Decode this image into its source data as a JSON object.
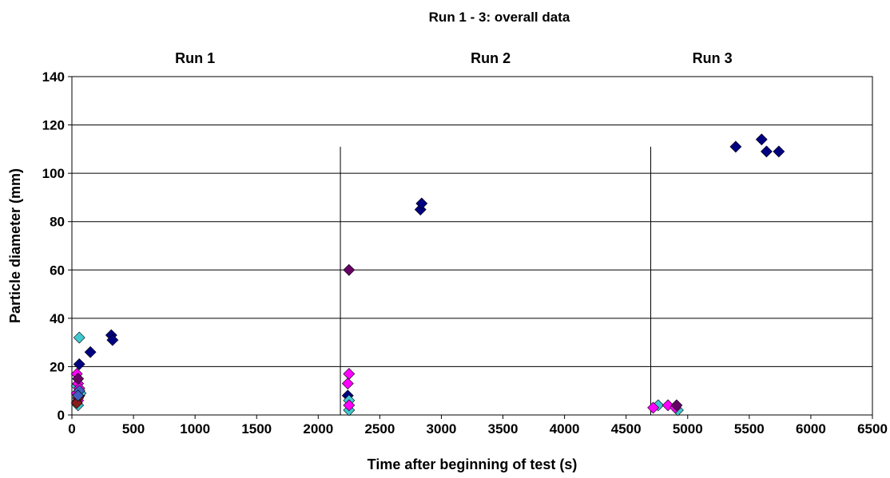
{
  "chart_data": {
    "type": "scatter",
    "title": "Run 1 - 3: overall data",
    "xlabel": "Time after beginning of test (s)",
    "ylabel": "Particle diameter (mm)",
    "xlim": [
      0,
      6500
    ],
    "ylim": [
      0,
      140
    ],
    "xticks": [
      0,
      500,
      1000,
      1500,
      2000,
      2500,
      3000,
      3500,
      4000,
      4500,
      5000,
      5500,
      6000,
      6500
    ],
    "yticks": [
      0,
      20,
      40,
      60,
      80,
      100,
      120,
      140
    ],
    "grid": "horizontal",
    "legend": "none",
    "run_labels": [
      {
        "text": "Run 1",
        "x": 1000
      },
      {
        "text": "Run 2",
        "x": 3400
      },
      {
        "text": "Run 3",
        "x": 5200
      }
    ],
    "run_dividers": [
      {
        "x": 2180,
        "y_top": 111
      },
      {
        "x": 4700,
        "y_top": 111
      }
    ],
    "series": [
      {
        "color": "#000080",
        "points": [
          [
            60,
            21
          ],
          [
            60,
            10
          ],
          [
            50,
            9
          ],
          [
            60,
            8
          ],
          [
            150,
            26
          ],
          [
            320,
            33
          ],
          [
            330,
            31
          ],
          [
            2240,
            8
          ],
          [
            2830,
            85
          ],
          [
            2840,
            87.5
          ],
          [
            5390,
            111
          ],
          [
            5600,
            114
          ],
          [
            5640,
            109
          ],
          [
            5740,
            109
          ]
        ]
      },
      {
        "color": "#40C8D0",
        "points": [
          [
            60,
            32
          ],
          [
            50,
            4
          ],
          [
            40,
            12
          ],
          [
            70,
            9
          ],
          [
            2250,
            6
          ],
          [
            2250,
            2
          ],
          [
            4760,
            4
          ],
          [
            4920,
            2
          ]
        ]
      },
      {
        "color": "#FF00FF",
        "points": [
          [
            40,
            17
          ],
          [
            50,
            13
          ],
          [
            60,
            11
          ],
          [
            40,
            9
          ],
          [
            50,
            6
          ],
          [
            2250,
            17
          ],
          [
            2240,
            13
          ],
          [
            2250,
            4
          ],
          [
            4720,
            3
          ],
          [
            4840,
            4
          ],
          [
            4900,
            3
          ]
        ]
      },
      {
        "color": "#660066",
        "points": [
          [
            50,
            15
          ],
          [
            2250,
            60
          ],
          [
            4910,
            4
          ]
        ]
      },
      {
        "color": "#8B1A1A",
        "points": [
          [
            50,
            7
          ],
          [
            40,
            5
          ]
        ]
      },
      {
        "color": "#4060C0",
        "points": [
          [
            60,
            10
          ],
          [
            50,
            8
          ]
        ]
      }
    ]
  }
}
